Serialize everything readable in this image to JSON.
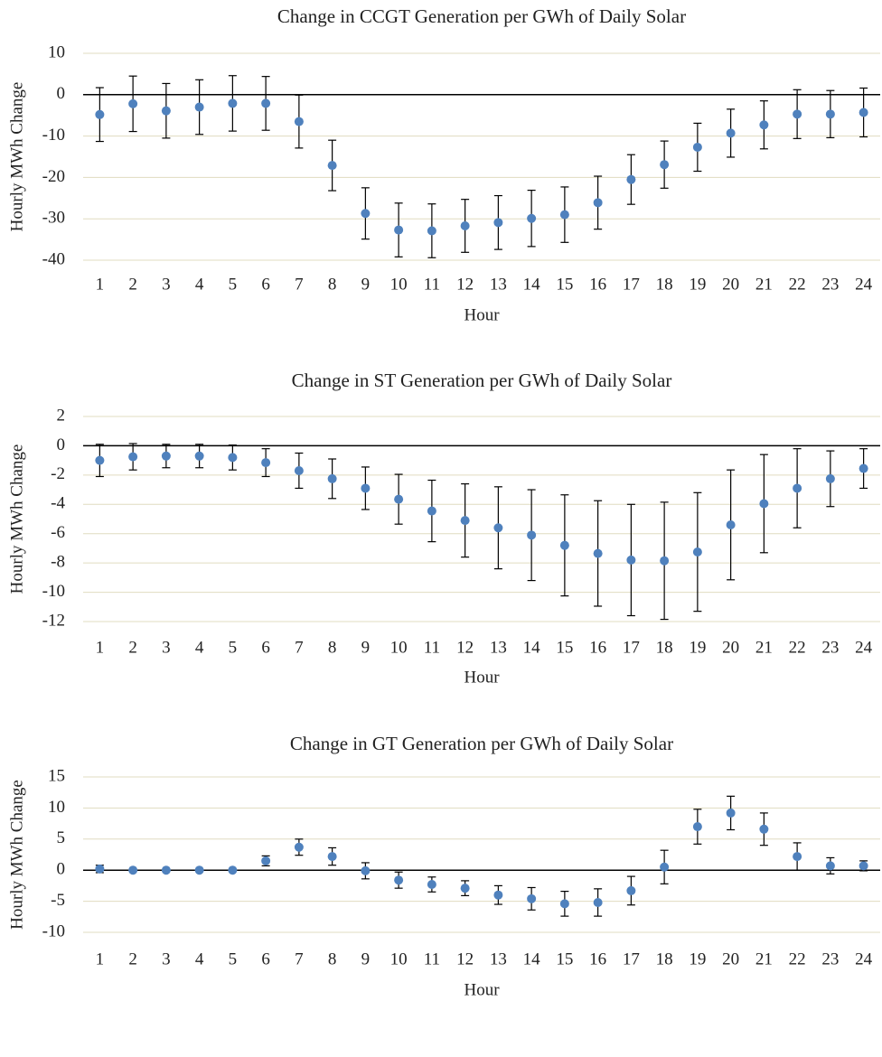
{
  "chart_data": [
    {
      "type": "errorbar",
      "title": "Change in CCGT Generation per GWh of Daily Solar",
      "x_label": "Hour",
      "y_label": "Hourly MWh Change",
      "categories": [
        "1",
        "2",
        "3",
        "4",
        "5",
        "6",
        "7",
        "8",
        "9",
        "10",
        "11",
        "12",
        "13",
        "14",
        "15",
        "16",
        "17",
        "18",
        "19",
        "20",
        "21",
        "22",
        "23",
        "24"
      ],
      "values": [
        -4.8,
        -2.2,
        -3.9,
        -3.0,
        -2.1,
        -2.1,
        -6.5,
        -17.1,
        -28.7,
        -32.7,
        -32.9,
        -31.7,
        -30.9,
        -29.9,
        -29.0,
        -26.1,
        -20.5,
        -16.9,
        -12.7,
        -9.3,
        -7.3,
        -4.7,
        -4.7,
        -4.3
      ],
      "errors": [
        6.5,
        6.7,
        6.6,
        6.6,
        6.7,
        6.5,
        6.4,
        6.1,
        6.2,
        6.5,
        6.5,
        6.4,
        6.5,
        6.8,
        6.7,
        6.4,
        6.0,
        5.7,
        5.8,
        5.8,
        5.8,
        5.9,
        5.7,
        5.9
      ],
      "color": "#4f81bd",
      "ylim": [
        -40,
        10
      ],
      "yticks": [
        -40,
        -30,
        -20,
        -10,
        0,
        10
      ],
      "grid": true
    },
    {
      "type": "errorbar",
      "title": "Change in ST Generation per GWh of Daily Solar",
      "x_label": "Hour",
      "y_label": "Hourly MWh Change",
      "categories": [
        "1",
        "2",
        "3",
        "4",
        "5",
        "6",
        "7",
        "8",
        "9",
        "10",
        "11",
        "12",
        "13",
        "14",
        "15",
        "16",
        "17",
        "18",
        "19",
        "20",
        "21",
        "22",
        "23",
        "24"
      ],
      "values": [
        -1.0,
        -0.75,
        -0.7,
        -0.7,
        -0.8,
        -1.15,
        -1.7,
        -2.25,
        -2.9,
        -3.65,
        -4.45,
        -5.1,
        -5.6,
        -6.1,
        -6.8,
        -7.35,
        -7.8,
        -7.85,
        -7.25,
        -5.4,
        -3.95,
        -2.9,
        -2.25,
        -1.55
      ],
      "errors": [
        1.1,
        0.9,
        0.8,
        0.8,
        0.85,
        0.95,
        1.2,
        1.35,
        1.45,
        1.7,
        2.1,
        2.5,
        2.8,
        3.1,
        3.45,
        3.6,
        3.8,
        4.0,
        4.05,
        3.75,
        3.35,
        2.7,
        1.9,
        1.35
      ],
      "color": "#4f81bd",
      "ylim": [
        -12,
        2
      ],
      "yticks": [
        -12,
        -10,
        -8,
        -6,
        -4,
        -2,
        0,
        2
      ],
      "grid": true
    },
    {
      "type": "errorbar",
      "title": "Change in GT Generation per GWh of Daily Solar",
      "x_label": "Hour",
      "y_label": "Hourly MWh Change",
      "categories": [
        "1",
        "2",
        "3",
        "4",
        "5",
        "6",
        "7",
        "8",
        "9",
        "10",
        "11",
        "12",
        "13",
        "14",
        "15",
        "16",
        "17",
        "18",
        "19",
        "20",
        "21",
        "22",
        "23",
        "24"
      ],
      "values": [
        0.2,
        0,
        0,
        0,
        0,
        1.5,
        3.7,
        2.2,
        -0.1,
        -1.6,
        -2.3,
        -2.9,
        -4.0,
        -4.6,
        -5.4,
        -5.2,
        -3.3,
        0.5,
        7.0,
        9.2,
        6.6,
        2.2,
        0.7,
        0.7
      ],
      "errors": [
        0.6,
        0.1,
        0.1,
        0.1,
        0.1,
        0.8,
        1.3,
        1.4,
        1.3,
        1.3,
        1.2,
        1.2,
        1.5,
        1.8,
        2.0,
        2.2,
        2.3,
        2.7,
        2.8,
        2.7,
        2.6,
        2.2,
        1.3,
        0.8
      ],
      "color": "#4f81bd",
      "ylim": [
        -10,
        15
      ],
      "yticks": [
        -10,
        -5,
        0,
        5,
        10,
        15
      ],
      "grid": true
    }
  ]
}
